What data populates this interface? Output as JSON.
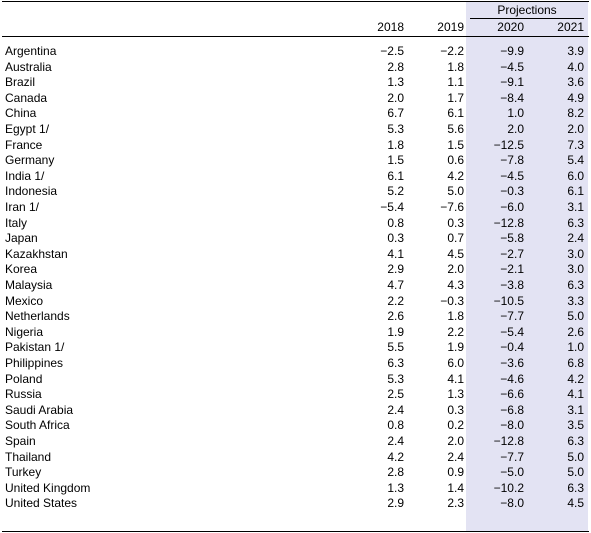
{
  "header": {
    "projections_label": "Projections",
    "years": [
      "2018",
      "2019",
      "2020",
      "2021"
    ]
  },
  "rows": [
    {
      "country": "Argentina",
      "values": [
        "−2.5",
        "−2.2",
        "−9.9",
        "3.9"
      ]
    },
    {
      "country": "Australia",
      "values": [
        "2.8",
        "1.8",
        "−4.5",
        "4.0"
      ]
    },
    {
      "country": "Brazil",
      "values": [
        "1.3",
        "1.1",
        "−9.1",
        "3.6"
      ]
    },
    {
      "country": "Canada",
      "values": [
        "2.0",
        "1.7",
        "−8.4",
        "4.9"
      ]
    },
    {
      "country": "China",
      "values": [
        "6.7",
        "6.1",
        "1.0",
        "8.2"
      ]
    },
    {
      "country": "Egypt 1/",
      "values": [
        "5.3",
        "5.6",
        "2.0",
        "2.0"
      ]
    },
    {
      "country": "France",
      "values": [
        "1.8",
        "1.5",
        "−12.5",
        "7.3"
      ]
    },
    {
      "country": "Germany",
      "values": [
        "1.5",
        "0.6",
        "−7.8",
        "5.4"
      ]
    },
    {
      "country": "India 1/",
      "values": [
        "6.1",
        "4.2",
        "−4.5",
        "6.0"
      ]
    },
    {
      "country": "Indonesia",
      "values": [
        "5.2",
        "5.0",
        "−0.3",
        "6.1"
      ]
    },
    {
      "country": "Iran 1/",
      "values": [
        "−5.4",
        "−7.6",
        "−6.0",
        "3.1"
      ]
    },
    {
      "country": "Italy",
      "values": [
        "0.8",
        "0.3",
        "−12.8",
        "6.3"
      ]
    },
    {
      "country": "Japan",
      "values": [
        "0.3",
        "0.7",
        "−5.8",
        "2.4"
      ]
    },
    {
      "country": "Kazakhstan",
      "values": [
        "4.1",
        "4.5",
        "−2.7",
        "3.0"
      ]
    },
    {
      "country": "Korea",
      "values": [
        "2.9",
        "2.0",
        "−2.1",
        "3.0"
      ]
    },
    {
      "country": "Malaysia",
      "values": [
        "4.7",
        "4.3",
        "−3.8",
        "6.3"
      ]
    },
    {
      "country": "Mexico",
      "values": [
        "2.2",
        "−0.3",
        "−10.5",
        "3.3"
      ]
    },
    {
      "country": "Netherlands",
      "values": [
        "2.6",
        "1.8",
        "−7.7",
        "5.0"
      ]
    },
    {
      "country": "Nigeria",
      "values": [
        "1.9",
        "2.2",
        "−5.4",
        "2.6"
      ]
    },
    {
      "country": "Pakistan 1/",
      "values": [
        "5.5",
        "1.9",
        "−0.4",
        "1.0"
      ]
    },
    {
      "country": "Philippines",
      "values": [
        "6.3",
        "6.0",
        "−3.6",
        "6.8"
      ]
    },
    {
      "country": "Poland",
      "values": [
        "5.3",
        "4.1",
        "−4.6",
        "4.2"
      ]
    },
    {
      "country": "Russia",
      "values": [
        "2.5",
        "1.3",
        "−6.6",
        "4.1"
      ]
    },
    {
      "country": "Saudi Arabia",
      "values": [
        "2.4",
        "0.3",
        "−6.8",
        "3.1"
      ]
    },
    {
      "country": "South Africa",
      "values": [
        "0.8",
        "0.2",
        "−8.0",
        "3.5"
      ]
    },
    {
      "country": "Spain",
      "values": [
        "2.4",
        "2.0",
        "−12.8",
        "6.3"
      ]
    },
    {
      "country": "Thailand",
      "values": [
        "4.2",
        "2.4",
        "−7.7",
        "5.0"
      ]
    },
    {
      "country": "Turkey",
      "values": [
        "2.8",
        "0.9",
        "−5.0",
        "5.0"
      ]
    },
    {
      "country": "United Kingdom",
      "values": [
        "1.3",
        "1.4",
        "−10.2",
        "6.3"
      ]
    },
    {
      "country": "United States",
      "values": [
        "2.9",
        "2.3",
        "−8.0",
        "4.5"
      ]
    }
  ]
}
